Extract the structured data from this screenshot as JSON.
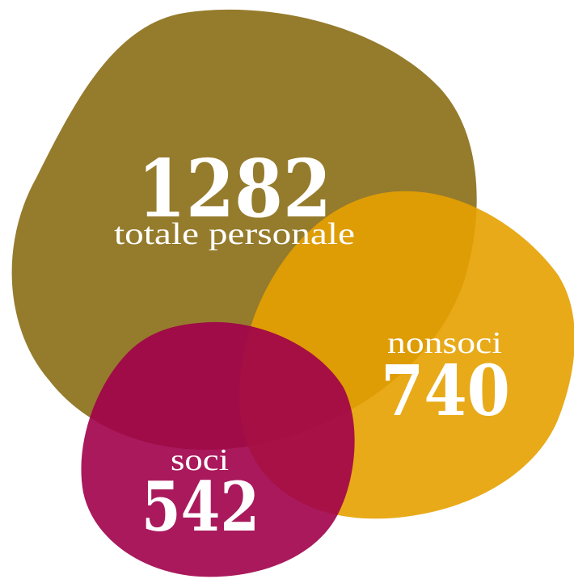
{
  "groups": [
    {
      "id": "totale",
      "value": "1282",
      "label": "totale personale",
      "color": "#8a6d15"
    },
    {
      "id": "nonsoci",
      "value": "740",
      "label": "nonsoci",
      "color": "#e5a100"
    },
    {
      "id": "soci",
      "value": "542",
      "label": "soci",
      "color": "#a0004a"
    }
  ]
}
